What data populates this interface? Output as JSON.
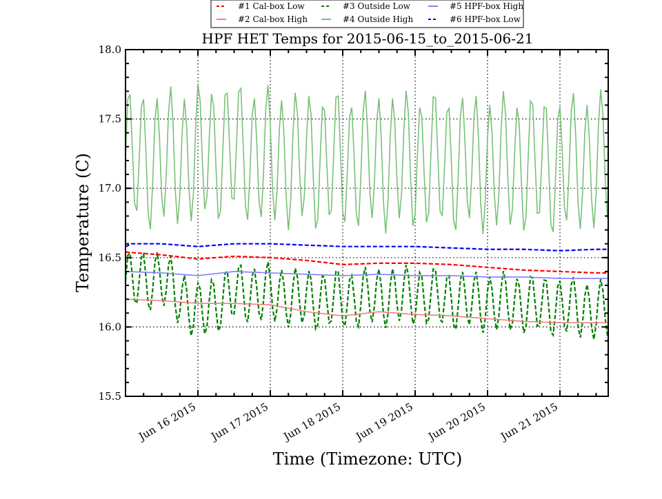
{
  "chart_data": {
    "type": "line",
    "title": "HPF HET Temps for 2015-06-15_to_2015-06-21",
    "xlabel": "Time (Timezone: UTC)",
    "ylabel": "Temperature (C)",
    "xlim": [
      "2015-06-15T00:00:00Z",
      "2015-06-21T16:00:00Z"
    ],
    "ylim": [
      15.5,
      18.0
    ],
    "yticks": [
      {
        "value": 15.5,
        "label": "15.5"
      },
      {
        "value": 16.0,
        "label": "16.0"
      },
      {
        "value": 16.5,
        "label": "16.5"
      },
      {
        "value": 17.0,
        "label": "17.0"
      },
      {
        "value": 17.5,
        "label": "17.5"
      },
      {
        "value": 18.0,
        "label": "18.0"
      }
    ],
    "xticks": [
      {
        "value": "2015-06-16T00:00:00Z",
        "label": "Jun 16 2015"
      },
      {
        "value": "2015-06-17T00:00:00Z",
        "label": "Jun 17 2015"
      },
      {
        "value": "2015-06-18T00:00:00Z",
        "label": "Jun 18 2015"
      },
      {
        "value": "2015-06-19T00:00:00Z",
        "label": "Jun 19 2015"
      },
      {
        "value": "2015-06-20T00:00:00Z",
        "label": "Jun 20 2015"
      },
      {
        "value": "2015-06-21T00:00:00Z",
        "label": "Jun 21 2015"
      }
    ],
    "grid": "dotted",
    "legend_position": "top-center",
    "series": [
      {
        "name": "#1 Cal-box Low",
        "color": "#ff0000",
        "style": "dashed",
        "opacity": 1,
        "x": [
          "2015-06-15T00:00:00Z",
          "2015-06-15T12:00:00Z",
          "2015-06-16T00:00:00Z",
          "2015-06-16T12:00:00Z",
          "2015-06-17T00:00:00Z",
          "2015-06-17T12:00:00Z",
          "2015-06-18T00:00:00Z",
          "2015-06-18T12:00:00Z",
          "2015-06-19T00:00:00Z",
          "2015-06-19T12:00:00Z",
          "2015-06-20T00:00:00Z",
          "2015-06-20T12:00:00Z",
          "2015-06-21T00:00:00Z",
          "2015-06-21T12:00:00Z",
          "2015-06-21T16:00:00Z"
        ],
        "y": [
          16.54,
          16.52,
          16.49,
          16.51,
          16.5,
          16.48,
          16.45,
          16.46,
          16.46,
          16.45,
          16.43,
          16.41,
          16.4,
          16.39,
          16.39
        ]
      },
      {
        "name": "#2 Cal-box High",
        "color": "#f08080",
        "style": "solid",
        "opacity": 1,
        "x": [
          "2015-06-15T00:00:00Z",
          "2015-06-15T12:00:00Z",
          "2015-06-16T00:00:00Z",
          "2015-06-16T12:00:00Z",
          "2015-06-17T00:00:00Z",
          "2015-06-17T12:00:00Z",
          "2015-06-18T00:00:00Z",
          "2015-06-18T12:00:00Z",
          "2015-06-19T00:00:00Z",
          "2015-06-19T12:00:00Z",
          "2015-06-20T00:00:00Z",
          "2015-06-20T12:00:00Z",
          "2015-06-21T00:00:00Z",
          "2015-06-21T12:00:00Z",
          "2015-06-21T16:00:00Z"
        ],
        "y": [
          16.2,
          16.19,
          16.17,
          16.17,
          16.16,
          16.11,
          16.08,
          16.11,
          16.09,
          16.08,
          16.06,
          16.04,
          16.03,
          16.03,
          16.03
        ]
      },
      {
        "name": "#3 Outside Low",
        "color": "#007f00",
        "style": "dashed",
        "opacity": 1,
        "x": [
          "2015-06-15T00:00:00Z",
          "2015-06-15T12:00:00Z",
          "2015-06-16T00:00:00Z",
          "2015-06-16T12:00:00Z",
          "2015-06-17T00:00:00Z",
          "2015-06-17T12:00:00Z",
          "2015-06-18T00:00:00Z",
          "2015-06-18T12:00:00Z",
          "2015-06-19T00:00:00Z",
          "2015-06-19T12:00:00Z",
          "2015-06-20T00:00:00Z",
          "2015-06-20T12:00:00Z",
          "2015-06-21T00:00:00Z",
          "2015-06-21T12:00:00Z",
          "2015-06-21T16:00:00Z"
        ],
        "y": [
          16.33,
          16.35,
          16.1,
          16.25,
          16.24,
          16.2,
          16.2,
          16.22,
          16.23,
          16.2,
          16.18,
          16.17,
          16.15,
          16.12,
          16.12
        ],
        "daily_swing": 0.24
      },
      {
        "name": "#4 Outside High",
        "color": "#78c078",
        "style": "solid",
        "opacity": 1,
        "x": [
          "2015-06-15T00:00:00Z",
          "2015-06-15T12:00:00Z",
          "2015-06-16T00:00:00Z",
          "2015-06-16T12:00:00Z",
          "2015-06-17T00:00:00Z",
          "2015-06-17T12:00:00Z",
          "2015-06-18T00:00:00Z",
          "2015-06-18T12:00:00Z",
          "2015-06-19T00:00:00Z",
          "2015-06-19T12:00:00Z",
          "2015-06-20T00:00:00Z",
          "2015-06-20T12:00:00Z",
          "2015-06-21T00:00:00Z",
          "2015-06-21T12:00:00Z",
          "2015-06-21T16:00:00Z"
        ],
        "y": [
          17.22,
          17.21,
          17.25,
          17.28,
          17.22,
          17.2,
          17.2,
          17.2,
          17.2,
          17.19,
          17.18,
          17.18,
          17.17,
          17.2,
          17.2
        ],
        "daily_swing": 0.55
      },
      {
        "name": "#5 HPF-box High",
        "color": "#7f7fff",
        "style": "solid",
        "opacity": 1,
        "x": [
          "2015-06-15T00:00:00Z",
          "2015-06-15T12:00:00Z",
          "2015-06-16T00:00:00Z",
          "2015-06-16T12:00:00Z",
          "2015-06-17T00:00:00Z",
          "2015-06-17T12:00:00Z",
          "2015-06-18T00:00:00Z",
          "2015-06-18T12:00:00Z",
          "2015-06-19T00:00:00Z",
          "2015-06-19T12:00:00Z",
          "2015-06-20T00:00:00Z",
          "2015-06-20T12:00:00Z",
          "2015-06-21T00:00:00Z",
          "2015-06-21T12:00:00Z",
          "2015-06-21T16:00:00Z"
        ],
        "y": [
          16.4,
          16.39,
          16.37,
          16.4,
          16.39,
          16.38,
          16.37,
          16.38,
          16.37,
          16.37,
          16.36,
          16.36,
          16.35,
          16.35,
          16.35
        ]
      },
      {
        "name": "#6 HPF-box Low",
        "color": "#0000ff",
        "style": "dashed",
        "opacity": 1,
        "x": [
          "2015-06-15T00:00:00Z",
          "2015-06-15T02:00:00Z",
          "2015-06-15T12:00:00Z",
          "2015-06-16T00:00:00Z",
          "2015-06-16T12:00:00Z",
          "2015-06-17T00:00:00Z",
          "2015-06-17T12:00:00Z",
          "2015-06-18T00:00:00Z",
          "2015-06-18T12:00:00Z",
          "2015-06-19T00:00:00Z",
          "2015-06-19T12:00:00Z",
          "2015-06-20T00:00:00Z",
          "2015-06-20T12:00:00Z",
          "2015-06-21T00:00:00Z",
          "2015-06-21T12:00:00Z",
          "2015-06-21T16:00:00Z"
        ],
        "y": [
          16.58,
          16.6,
          16.6,
          16.58,
          16.6,
          16.6,
          16.59,
          16.58,
          16.58,
          16.58,
          16.57,
          16.56,
          16.56,
          16.55,
          16.56,
          16.56
        ]
      }
    ]
  }
}
